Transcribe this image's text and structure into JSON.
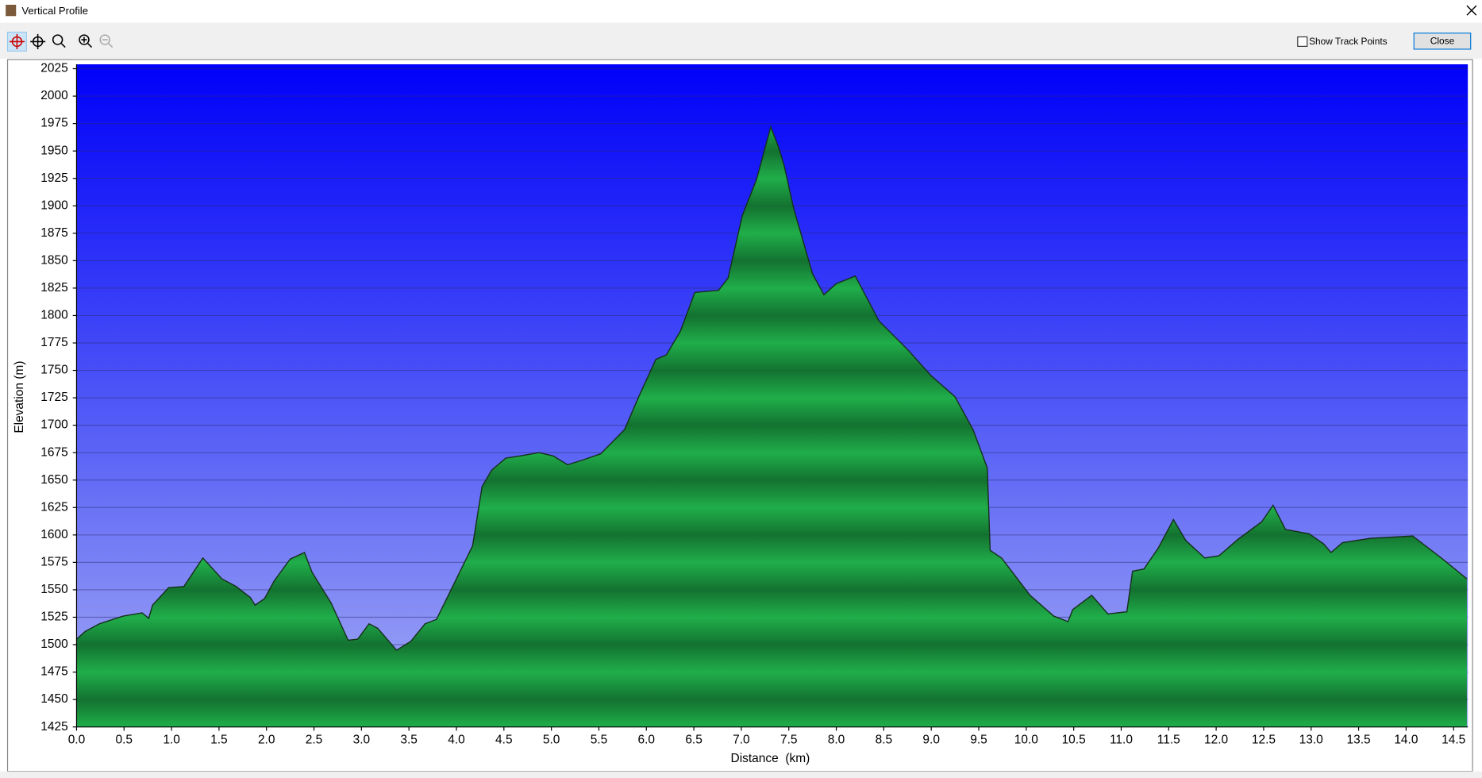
{
  "window": {
    "title": "Vertical Profile",
    "show_track_points": "Show Track Points",
    "close_button": "Close"
  },
  "chart_data": {
    "type": "area",
    "x_label": "Distance  (km)",
    "y_label": "Elevation (m)",
    "color": "#1fa847",
    "x": [
      0.0,
      0.09,
      0.24,
      0.49,
      0.69,
      0.76,
      0.8,
      0.97,
      1.13,
      1.23,
      1.33,
      1.53,
      1.68,
      1.83,
      1.88,
      1.98,
      2.08,
      2.25,
      2.4,
      2.48,
      2.68,
      2.86,
      2.96,
      3.08,
      3.17,
      3.37,
      3.52,
      3.67,
      3.79,
      4.17,
      4.27,
      4.37,
      4.52,
      4.67,
      4.87,
      5.02,
      5.17,
      5.32,
      5.52,
      5.77,
      5.92,
      6.1,
      6.21,
      6.36,
      6.51,
      6.76,
      6.86,
      7.01,
      7.16,
      7.31,
      7.39,
      7.45,
      7.55,
      7.75,
      7.87,
      8.0,
      8.2,
      8.45,
      8.75,
      9.0,
      9.25,
      9.44,
      9.59,
      9.62,
      9.74,
      10.04,
      10.29,
      10.44,
      10.49,
      10.69,
      10.86,
      11.06,
      11.12,
      11.24,
      11.39,
      11.55,
      11.68,
      11.88,
      12.03,
      12.23,
      12.48,
      12.6,
      12.73,
      12.98,
      13.13,
      13.21,
      13.33,
      13.63,
      14.07,
      14.37,
      14.64
    ],
    "values": [
      1505,
      1512,
      1519,
      1526,
      1529,
      1524,
      1536,
      1552,
      1553,
      1566,
      1579,
      1560,
      1553,
      1543,
      1536,
      1542,
      1558,
      1578,
      1584,
      1566,
      1538,
      1504,
      1505,
      1519,
      1515,
      1495,
      1503,
      1519,
      1523,
      1590,
      1644,
      1659,
      1670,
      1672,
      1675,
      1672,
      1664,
      1668,
      1674,
      1696,
      1726,
      1760,
      1764,
      1786,
      1821,
      1823,
      1834,
      1891,
      1924,
      1972,
      1954,
      1937,
      1898,
      1838,
      1819,
      1829,
      1836,
      1795,
      1769,
      1745,
      1726,
      1696,
      1661,
      1586,
      1579,
      1545,
      1526,
      1521,
      1532,
      1545,
      1528,
      1530,
      1567,
      1569,
      1588,
      1614,
      1595,
      1579,
      1581,
      1596,
      1612,
      1627,
      1605,
      1601,
      1592,
      1584,
      1593,
      1597,
      1599,
      1579,
      1560
    ],
    "xlim": [
      0,
      14.65
    ],
    "ylim": [
      1425,
      2029
    ],
    "xticks": [
      {
        "value": 0,
        "label": "0.0"
      },
      0.5,
      {
        "value": 1,
        "label": "1.0"
      },
      1.5,
      {
        "value": 2,
        "label": "2.0"
      },
      2.5,
      {
        "value": 3,
        "label": "3.0"
      },
      3.5,
      {
        "value": 4,
        "label": "4.0"
      },
      4.5,
      {
        "value": 5,
        "label": "5.0"
      },
      5.5,
      {
        "value": 6,
        "label": "6.0"
      },
      6.5,
      {
        "value": 7,
        "label": "7.0"
      },
      7.5,
      {
        "value": 8,
        "label": "8.0"
      },
      8.5,
      {
        "value": 9,
        "label": "9.0"
      },
      9.5,
      {
        "value": 10,
        "label": "10.0"
      },
      10.5,
      {
        "value": 11,
        "label": "11.0"
      },
      11.5,
      {
        "value": 12,
        "label": "12.0"
      },
      12.5,
      {
        "value": 13,
        "label": "13.0"
      },
      13.5,
      {
        "value": 14,
        "label": "14.0"
      },
      14.5
    ],
    "yticks": [
      1425,
      1450,
      1475,
      1500,
      1525,
      1550,
      1575,
      1600,
      1625,
      1650,
      1675,
      1700,
      1725,
      1750,
      1775,
      1800,
      1825,
      1850,
      1875,
      1900,
      1925,
      1950,
      1975,
      2000,
      2025
    ],
    "grid": true
  }
}
